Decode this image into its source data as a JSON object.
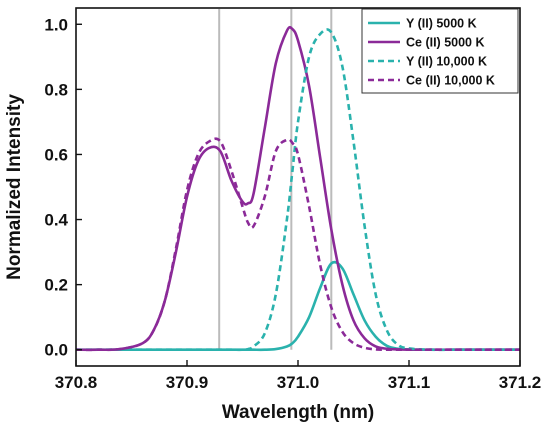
{
  "chart_data": {
    "type": "line",
    "title": "",
    "xlabel": "Wavelength (nm)",
    "ylabel": "Normalized Intensity",
    "xlim": [
      370.8,
      371.2
    ],
    "ylim": [
      -0.05,
      1.05
    ],
    "x_ticks": [
      "370.8",
      "370.9",
      "371.0",
      "371.1",
      "371.2"
    ],
    "y_ticks": [
      "0.0",
      "0.2",
      "0.4",
      "0.6",
      "0.8",
      "1.0"
    ],
    "grid": false,
    "legend_position": "top-right",
    "colors": {
      "teal": "#2ab2ad",
      "purple": "#8b2a98",
      "reference_lines": "#bbbbbb"
    },
    "reference_lines_x": [
      370.929,
      370.994,
      371.03
    ],
    "x": [
      370.8,
      370.82,
      370.84,
      370.86,
      370.87,
      370.88,
      370.89,
      370.9,
      370.91,
      370.92,
      370.93,
      370.94,
      370.95,
      370.955,
      370.96,
      370.97,
      370.98,
      370.99,
      370.995,
      371.0,
      371.01,
      371.02,
      371.03,
      371.04,
      371.05,
      371.06,
      371.07,
      371.08,
      371.09,
      371.1,
      371.12,
      371.14,
      371.16,
      371.18,
      371.2
    ],
    "series": [
      {
        "name": "Y (II) 5000 K",
        "style": "solid",
        "color": "#2ab2ad",
        "values": [
          0,
          0,
          0,
          0,
          0,
          0,
          0,
          0,
          0,
          0,
          0,
          0,
          0,
          0,
          0,
          0,
          0.002,
          0.01,
          0.02,
          0.04,
          0.1,
          0.19,
          0.265,
          0.25,
          0.17,
          0.09,
          0.04,
          0.012,
          0.003,
          0.001,
          0,
          0,
          0,
          0,
          0
        ]
      },
      {
        "name": "Ce (II) 5000 K",
        "style": "solid",
        "color": "#8b2a98",
        "values": [
          0,
          0,
          0.002,
          0.02,
          0.06,
          0.15,
          0.3,
          0.47,
          0.58,
          0.62,
          0.61,
          0.52,
          0.455,
          0.45,
          0.48,
          0.68,
          0.88,
          0.98,
          0.985,
          0.95,
          0.81,
          0.59,
          0.37,
          0.2,
          0.09,
          0.035,
          0.01,
          0.003,
          0.001,
          0,
          0,
          0,
          0,
          0,
          0
        ]
      },
      {
        "name": "Y (II) 10,000 K",
        "style": "dashed",
        "color": "#2ab2ad",
        "values": [
          0,
          0,
          0,
          0,
          0,
          0,
          0,
          0,
          0,
          0,
          0,
          0,
          0,
          0.002,
          0.01,
          0.05,
          0.17,
          0.4,
          0.55,
          0.7,
          0.9,
          0.97,
          0.975,
          0.87,
          0.64,
          0.38,
          0.17,
          0.06,
          0.015,
          0.004,
          0,
          0,
          0,
          0,
          0
        ]
      },
      {
        "name": "Ce (II) 10,000 K",
        "style": "dashed",
        "color": "#8b2a98",
        "values": [
          0,
          0,
          0.002,
          0.02,
          0.06,
          0.15,
          0.31,
          0.49,
          0.6,
          0.64,
          0.64,
          0.55,
          0.44,
          0.39,
          0.38,
          0.47,
          0.61,
          0.645,
          0.635,
          0.6,
          0.44,
          0.26,
          0.13,
          0.055,
          0.02,
          0.006,
          0.001,
          0,
          0,
          0,
          0,
          0,
          0,
          0,
          0
        ]
      }
    ]
  }
}
